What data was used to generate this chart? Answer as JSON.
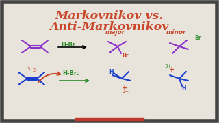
{
  "title_line1": "Markovnikov vs.",
  "title_line2": "Anti-Markovnikov",
  "title_color": "#c9472b",
  "bg_color": "#e8e4dc",
  "border_color": "#444444",
  "hbr_label": "H-Br",
  "hbr2_label": "H-Br:",
  "major_label": "major",
  "minor_label": "minor",
  "br_label": "Br",
  "plus_label": "+",
  "z2_label": "2+",
  "z3_label": "3+",
  "mol_color": "#8b2fc9",
  "mol_color2": "#1a3fcc",
  "green_color": "#2a8a2a",
  "red_color": "#c9472b",
  "arrow_color": "#2a8a2a"
}
